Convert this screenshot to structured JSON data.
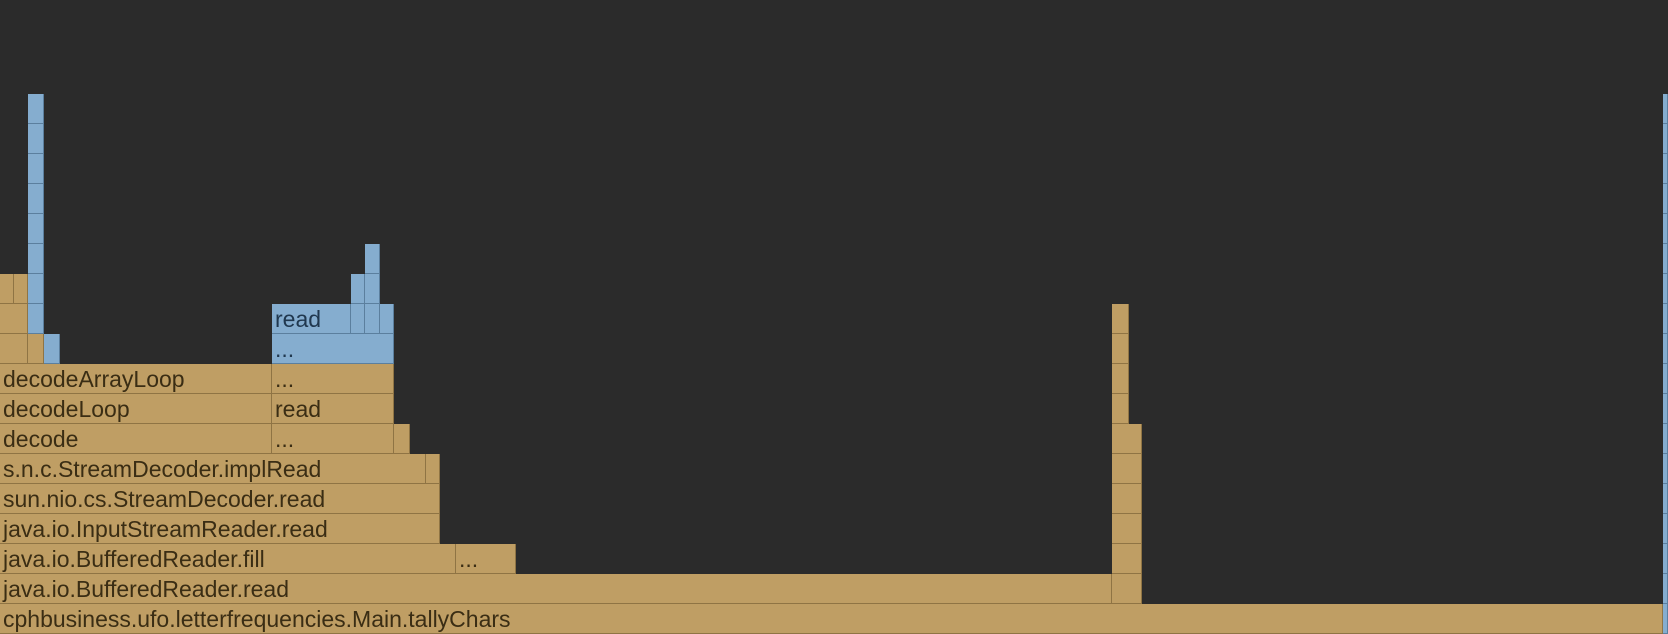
{
  "chart_data": {
    "type": "flamegraph",
    "title": "",
    "total_samples": 1668,
    "colors": {
      "background": "#2b2b2b",
      "java": "#bf9e64",
      "native": "#85adcf"
    },
    "frames": [
      {
        "label": "cphbusiness.ufo.letterfrequencies.Main.tallyChars",
        "depth": 0,
        "start": 0,
        "samples": 1663,
        "kind": "java"
      },
      {
        "label": "",
        "depth": 0,
        "start": 1663,
        "samples": 5,
        "kind": "native"
      },
      {
        "label": "java.io.BufferedReader.read",
        "depth": 1,
        "start": 0,
        "samples": 1112,
        "kind": "java"
      },
      {
        "label": "",
        "depth": 1,
        "start": 1112,
        "samples": 30,
        "kind": "java"
      },
      {
        "label": "",
        "depth": 1,
        "start": 1663,
        "samples": 5,
        "kind": "native"
      },
      {
        "label": "java.io.BufferedReader.fill",
        "depth": 2,
        "start": 0,
        "samples": 456,
        "kind": "java"
      },
      {
        "label": "...",
        "depth": 2,
        "start": 456,
        "samples": 60,
        "kind": "java"
      },
      {
        "label": "",
        "depth": 2,
        "start": 1112,
        "samples": 30,
        "kind": "java"
      },
      {
        "label": "",
        "depth": 2,
        "start": 1663,
        "samples": 5,
        "kind": "native"
      },
      {
        "label": "java.io.InputStreamReader.read",
        "depth": 3,
        "start": 0,
        "samples": 440,
        "kind": "java"
      },
      {
        "label": "",
        "depth": 3,
        "start": 1112,
        "samples": 30,
        "kind": "java"
      },
      {
        "label": "",
        "depth": 3,
        "start": 1663,
        "samples": 5,
        "kind": "native"
      },
      {
        "label": "sun.nio.cs.StreamDecoder.read",
        "depth": 4,
        "start": 0,
        "samples": 440,
        "kind": "java"
      },
      {
        "label": "",
        "depth": 4,
        "start": 1112,
        "samples": 30,
        "kind": "java"
      },
      {
        "label": "",
        "depth": 4,
        "start": 1663,
        "samples": 5,
        "kind": "native"
      },
      {
        "label": "s.n.c.StreamDecoder.implRead",
        "depth": 5,
        "start": 0,
        "samples": 426,
        "kind": "java"
      },
      {
        "label": "",
        "depth": 5,
        "start": 426,
        "samples": 14,
        "kind": "java"
      },
      {
        "label": "",
        "depth": 5,
        "start": 1112,
        "samples": 30,
        "kind": "java"
      },
      {
        "label": "",
        "depth": 5,
        "start": 1663,
        "samples": 5,
        "kind": "native"
      },
      {
        "label": "decode",
        "depth": 6,
        "start": 0,
        "samples": 272,
        "kind": "java"
      },
      {
        "label": "...",
        "depth": 6,
        "start": 272,
        "samples": 122,
        "kind": "java"
      },
      {
        "label": "",
        "depth": 6,
        "start": 394,
        "samples": 16,
        "kind": "java"
      },
      {
        "label": "",
        "depth": 6,
        "start": 1112,
        "samples": 30,
        "kind": "java"
      },
      {
        "label": "",
        "depth": 6,
        "start": 1663,
        "samples": 5,
        "kind": "native"
      },
      {
        "label": "decodeLoop",
        "depth": 7,
        "start": 0,
        "samples": 272,
        "kind": "java"
      },
      {
        "label": "read",
        "depth": 7,
        "start": 272,
        "samples": 122,
        "kind": "java"
      },
      {
        "label": "",
        "depth": 7,
        "start": 1112,
        "samples": 17,
        "kind": "java"
      },
      {
        "label": "",
        "depth": 7,
        "start": 1663,
        "samples": 5,
        "kind": "native"
      },
      {
        "label": "decodeArrayLoop",
        "depth": 8,
        "start": 0,
        "samples": 272,
        "kind": "java"
      },
      {
        "label": "...",
        "depth": 8,
        "start": 272,
        "samples": 122,
        "kind": "java"
      },
      {
        "label": "",
        "depth": 8,
        "start": 1112,
        "samples": 17,
        "kind": "java"
      },
      {
        "label": "",
        "depth": 8,
        "start": 1663,
        "samples": 5,
        "kind": "native"
      },
      {
        "label": "",
        "depth": 9,
        "start": 0,
        "samples": 28,
        "kind": "java"
      },
      {
        "label": "",
        "depth": 9,
        "start": 28,
        "samples": 16,
        "kind": "java"
      },
      {
        "label": "",
        "depth": 9,
        "start": 44,
        "samples": 16,
        "kind": "native"
      },
      {
        "label": "...",
        "depth": 9,
        "start": 272,
        "samples": 122,
        "kind": "native"
      },
      {
        "label": "",
        "depth": 9,
        "start": 1112,
        "samples": 17,
        "kind": "java"
      },
      {
        "label": "",
        "depth": 9,
        "start": 1663,
        "samples": 5,
        "kind": "native"
      },
      {
        "label": "",
        "depth": 10,
        "start": 0,
        "samples": 28,
        "kind": "java"
      },
      {
        "label": "",
        "depth": 10,
        "start": 28,
        "samples": 16,
        "kind": "native"
      },
      {
        "label": "read",
        "depth": 10,
        "start": 272,
        "samples": 79,
        "kind": "native"
      },
      {
        "label": "",
        "depth": 10,
        "start": 351,
        "samples": 14,
        "kind": "native"
      },
      {
        "label": "",
        "depth": 10,
        "start": 365,
        "samples": 15,
        "kind": "native"
      },
      {
        "label": "",
        "depth": 10,
        "start": 380,
        "samples": 14,
        "kind": "native"
      },
      {
        "label": "",
        "depth": 10,
        "start": 1112,
        "samples": 17,
        "kind": "java"
      },
      {
        "label": "",
        "depth": 10,
        "start": 1663,
        "samples": 5,
        "kind": "native"
      },
      {
        "label": "",
        "depth": 11,
        "start": 0,
        "samples": 14,
        "kind": "java"
      },
      {
        "label": "",
        "depth": 11,
        "start": 14,
        "samples": 14,
        "kind": "java"
      },
      {
        "label": "",
        "depth": 11,
        "start": 28,
        "samples": 16,
        "kind": "native"
      },
      {
        "label": "",
        "depth": 11,
        "start": 351,
        "samples": 14,
        "kind": "native"
      },
      {
        "label": "",
        "depth": 11,
        "start": 365,
        "samples": 15,
        "kind": "native"
      },
      {
        "label": "",
        "depth": 11,
        "start": 1663,
        "samples": 5,
        "kind": "native"
      },
      {
        "label": "",
        "depth": 12,
        "start": 28,
        "samples": 16,
        "kind": "native"
      },
      {
        "label": "",
        "depth": 12,
        "start": 365,
        "samples": 15,
        "kind": "native"
      },
      {
        "label": "",
        "depth": 12,
        "start": 1663,
        "samples": 5,
        "kind": "native"
      },
      {
        "label": "",
        "depth": 13,
        "start": 28,
        "samples": 16,
        "kind": "native"
      },
      {
        "label": "",
        "depth": 13,
        "start": 1663,
        "samples": 5,
        "kind": "native"
      },
      {
        "label": "",
        "depth": 14,
        "start": 28,
        "samples": 16,
        "kind": "native"
      },
      {
        "label": "",
        "depth": 14,
        "start": 1663,
        "samples": 5,
        "kind": "native"
      },
      {
        "label": "",
        "depth": 15,
        "start": 28,
        "samples": 16,
        "kind": "native"
      },
      {
        "label": "",
        "depth": 15,
        "start": 1663,
        "samples": 5,
        "kind": "native"
      },
      {
        "label": "",
        "depth": 16,
        "start": 28,
        "samples": 16,
        "kind": "native"
      },
      {
        "label": "",
        "depth": 16,
        "start": 1663,
        "samples": 5,
        "kind": "native"
      },
      {
        "label": "",
        "depth": 17,
        "start": 28,
        "samples": 16,
        "kind": "native"
      },
      {
        "label": "",
        "depth": 17,
        "start": 1663,
        "samples": 5,
        "kind": "native"
      }
    ]
  }
}
